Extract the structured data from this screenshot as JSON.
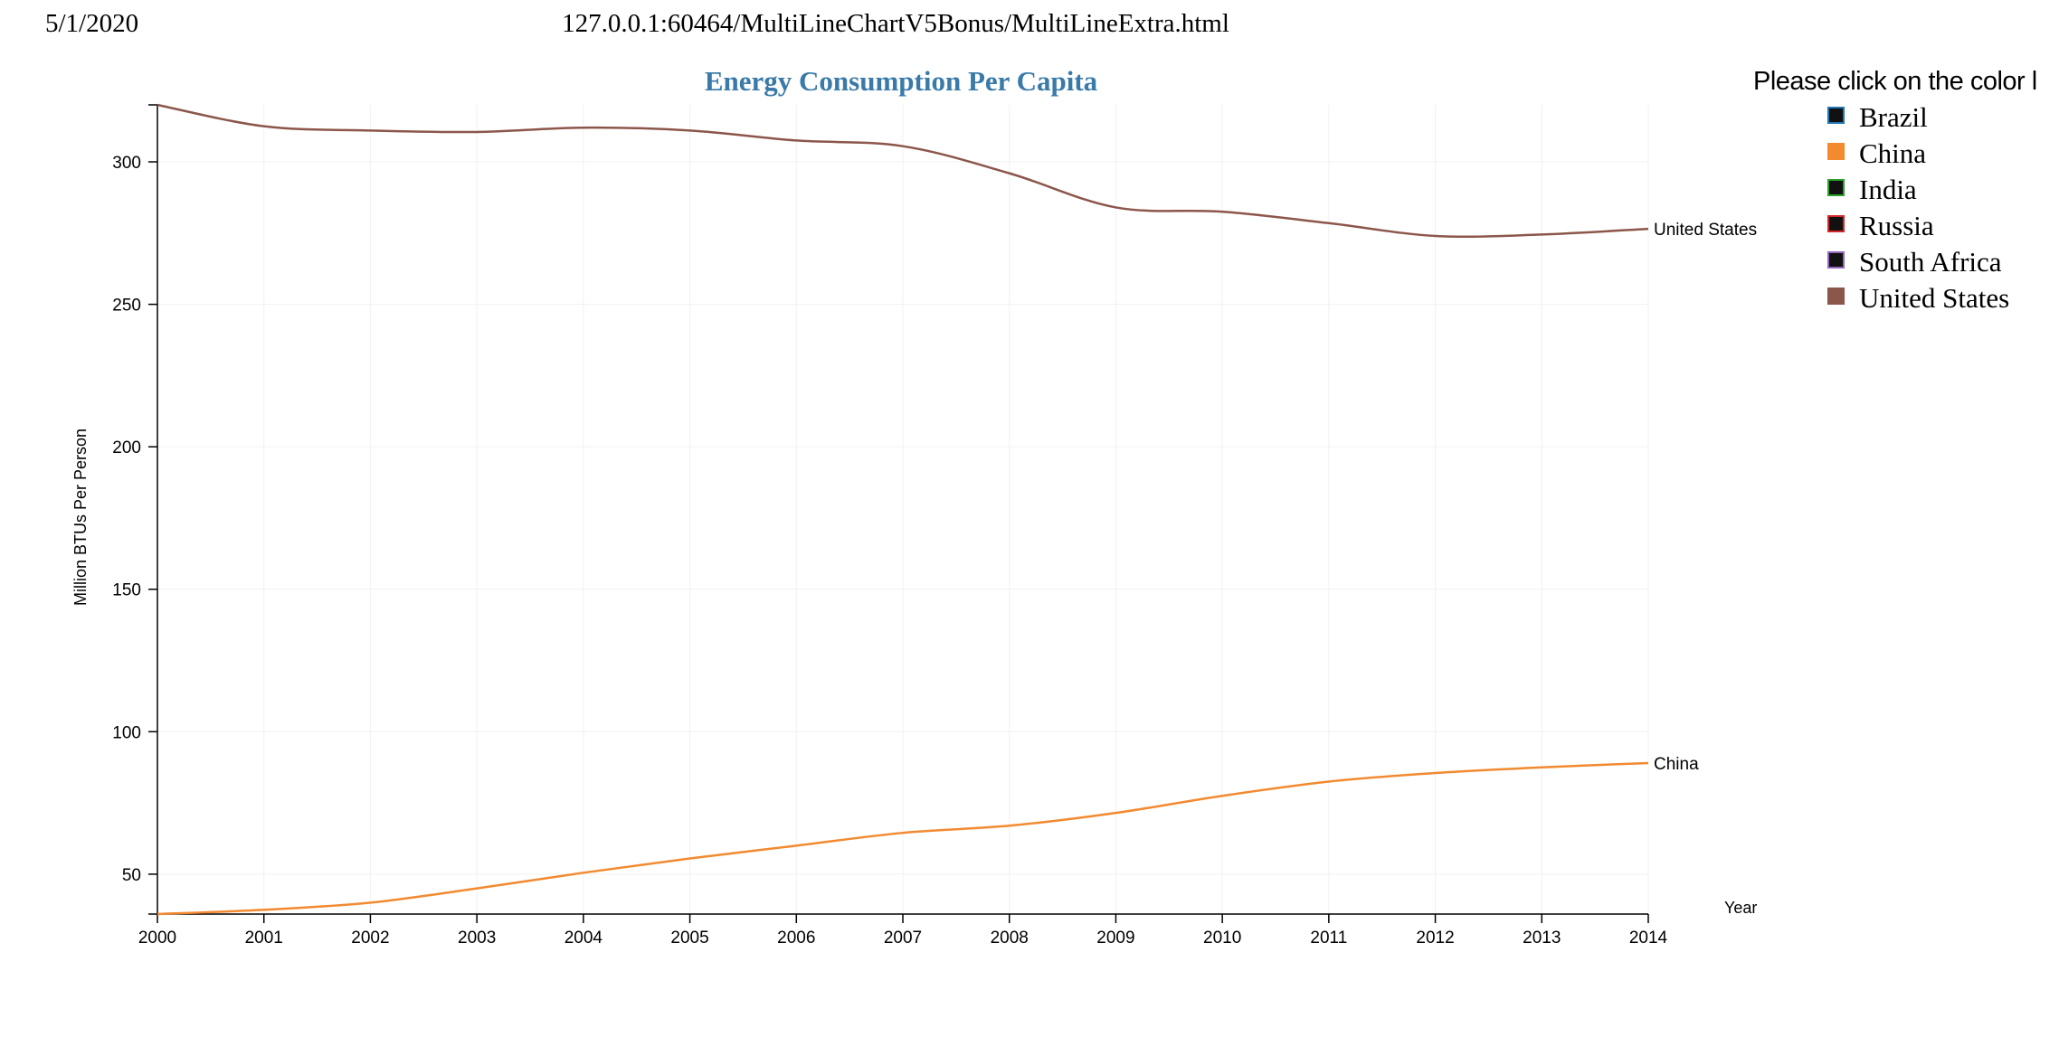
{
  "print_header": {
    "date": "5/1/2020",
    "url": "127.0.0.1:60464/MultiLineChartV5Bonus/MultiLineExtra.html"
  },
  "legend": {
    "title": "Please click on the color l",
    "items": [
      {
        "label": "Brazil",
        "fill": "#111111",
        "border": "#1f77b4"
      },
      {
        "label": "China",
        "fill": "#f28a30",
        "border": "#f28a30"
      },
      {
        "label": "India",
        "fill": "#111111",
        "border": "#2ca02c"
      },
      {
        "label": "Russia",
        "fill": "#111111",
        "border": "#d62728"
      },
      {
        "label": "South Africa",
        "fill": "#111111",
        "border": "#9467bd"
      },
      {
        "label": "United States",
        "fill": "#8c564b",
        "border": "#8c564b"
      }
    ]
  },
  "chart_data": {
    "type": "line",
    "title": "Energy Consumption Per Capita",
    "xlabel": "Year",
    "ylabel": "Million BTUs Per Person",
    "x": [
      2000,
      2001,
      2002,
      2003,
      2004,
      2005,
      2006,
      2007,
      2008,
      2009,
      2010,
      2011,
      2012,
      2013,
      2014
    ],
    "xlim": [
      2000,
      2014
    ],
    "ylim": [
      36,
      320
    ],
    "yticks": [
      50,
      100,
      150,
      200,
      250,
      300
    ],
    "grid": true,
    "series": [
      {
        "name": "China",
        "color": "#f28a30",
        "values": [
          36,
          37.5,
          40,
          45,
          50.5,
          55.5,
          60,
          64.5,
          67,
          71.5,
          77.5,
          82.5,
          85.5,
          87.5,
          89
        ]
      },
      {
        "name": "United States",
        "color": "#8c564b",
        "values": [
          320,
          312.5,
          311,
          310.5,
          312,
          311,
          307.5,
          305.5,
          296,
          284,
          282.5,
          278.5,
          274,
          274.5,
          276.5
        ]
      }
    ]
  }
}
